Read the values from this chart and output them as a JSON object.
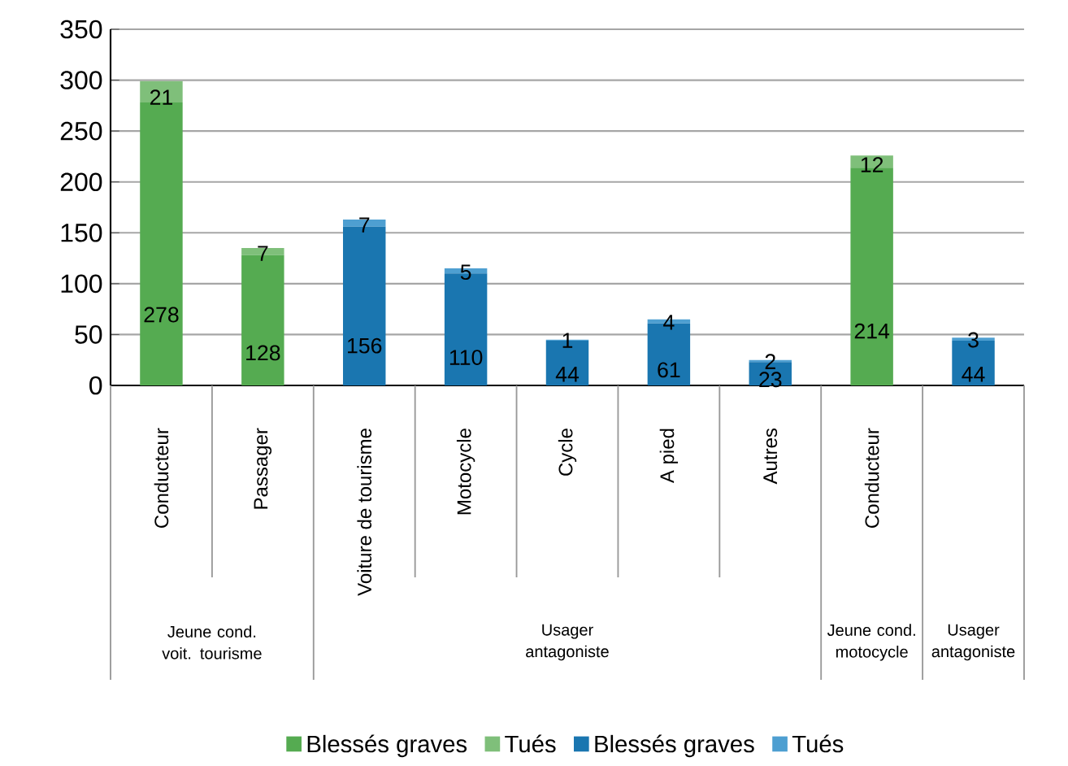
{
  "chart_data": {
    "type": "bar",
    "stacked": true,
    "categories": [
      "Conducteur",
      "Passager",
      "Voiture de tourisme",
      "Motocycle",
      "Cycle",
      "A pied",
      "Autres",
      "Conducteur",
      null
    ],
    "series": [
      {
        "name": "Blessés graves",
        "color": "#55ab51",
        "values": [
          278,
          128,
          null,
          null,
          null,
          null,
          null,
          214,
          null
        ]
      },
      {
        "name": "Tués",
        "color": "#7fbf7a",
        "values": [
          21,
          7,
          null,
          null,
          null,
          null,
          null,
          12,
          null
        ]
      },
      {
        "name": "Blessés graves",
        "color": "#1a76b0",
        "values": [
          null,
          null,
          156,
          110,
          44,
          61,
          23,
          null,
          44
        ]
      },
      {
        "name": "Tués",
        "color": "#4e9fd1",
        "values": [
          null,
          null,
          7,
          5,
          1,
          4,
          2,
          null,
          3
        ]
      }
    ],
    "ylim": [
      0,
      350
    ],
    "yticks": [
      0,
      50,
      100,
      150,
      200,
      250,
      300,
      350
    ],
    "grid": "y",
    "legend": "bottom",
    "data_labels": true,
    "annotations": [
      "Jeune cond. voit. tourisme",
      "Usager antagoniste",
      "Jeune cond. motocycle",
      "Usager antagoniste"
    ]
  }
}
